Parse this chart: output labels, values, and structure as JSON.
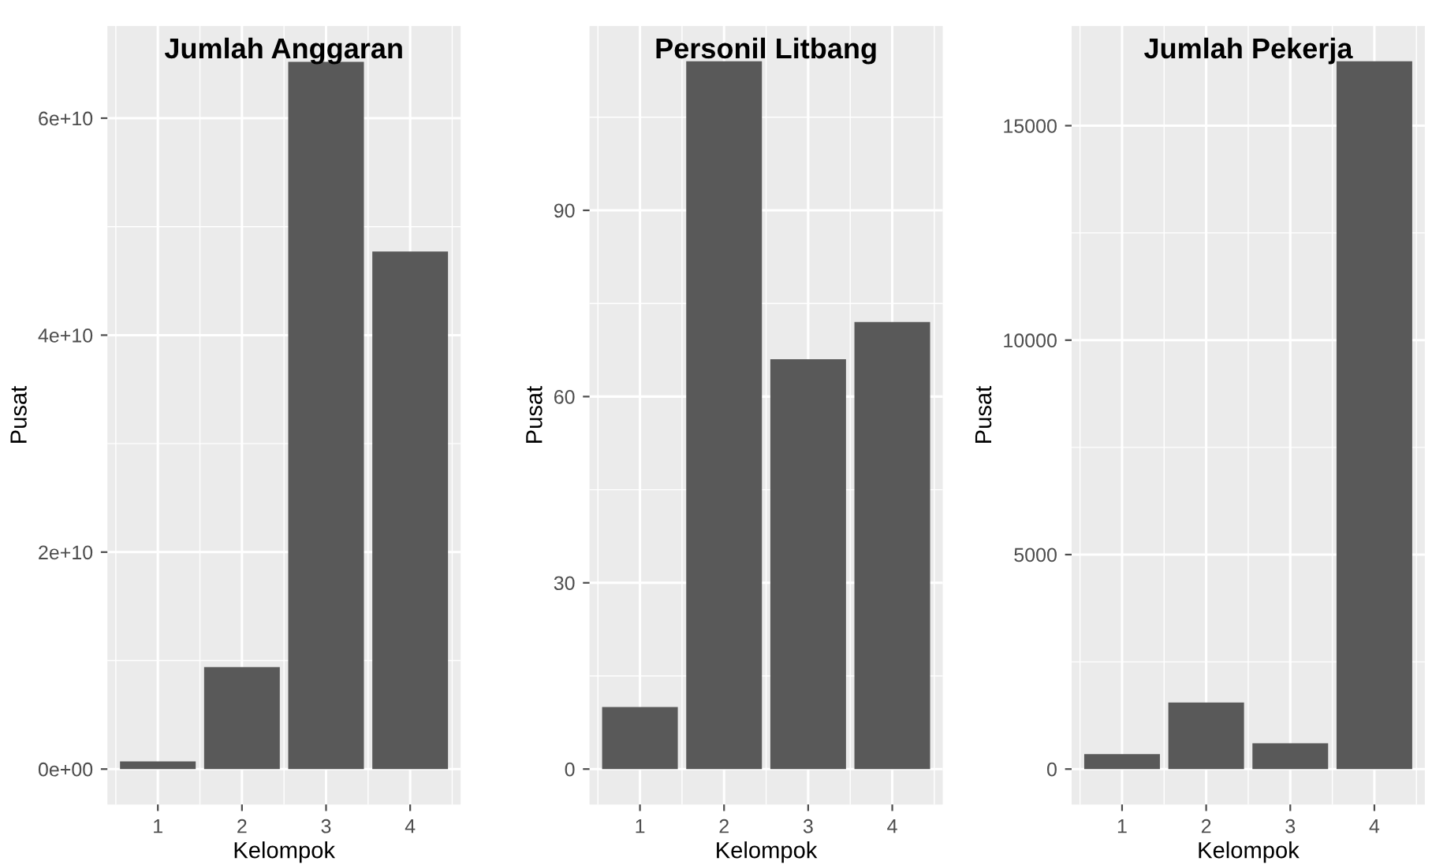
{
  "chart_data": [
    {
      "type": "bar",
      "title": "Jumlah Anggaran",
      "xlabel": "Kelompok",
      "ylabel": "Pusat",
      "categories": [
        "1",
        "2",
        "3",
        "4"
      ],
      "values": [
        700000000,
        9400000000,
        65200000000,
        47700000000
      ],
      "color": "#595959",
      "ylim": [
        -3260000000,
        68500000000
      ],
      "yticks": [
        {
          "value": 0,
          "label": "0e+00"
        },
        {
          "value": 20000000000,
          "label": "2e+10"
        },
        {
          "value": 40000000000,
          "label": "4e+10"
        },
        {
          "value": 60000000000,
          "label": "6e+10"
        }
      ],
      "grid": true
    },
    {
      "type": "bar",
      "title": "Personil Litbang",
      "xlabel": "Kelompok",
      "ylabel": "Pusat",
      "categories": [
        "1",
        "2",
        "3",
        "4"
      ],
      "values": [
        10,
        114,
        66,
        72
      ],
      "color": "#595959",
      "ylim": [
        -5.7,
        119.7
      ],
      "yticks": [
        0,
        30,
        60,
        90
      ],
      "grid": true
    },
    {
      "type": "bar",
      "title": "Jumlah Pekerja",
      "xlabel": "Kelompok",
      "ylabel": "Pusat",
      "categories": [
        "1",
        "2",
        "3",
        "4"
      ],
      "values": [
        350,
        1550,
        600,
        16500
      ],
      "color": "#595959",
      "ylim": [
        -825,
        17325
      ],
      "yticks": [
        0,
        5000,
        10000,
        15000
      ],
      "grid": true
    }
  ]
}
